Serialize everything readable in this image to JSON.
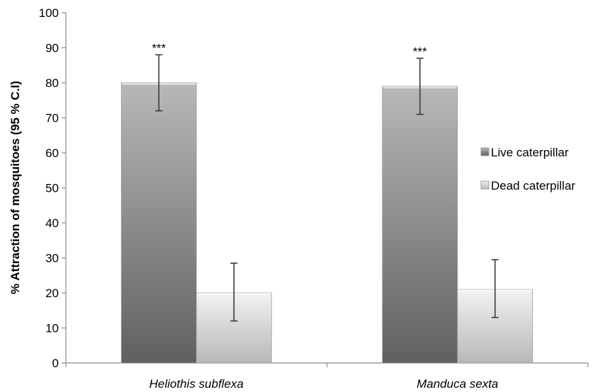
{
  "chart_data": {
    "type": "bar",
    "title": "",
    "xlabel": "",
    "ylabel": "% Attraction of mosquitoes (95 % C.I)",
    "ylim": [
      0,
      100
    ],
    "yticks": [
      "0",
      "10",
      "20",
      "30",
      "40",
      "50",
      "60",
      "70",
      "80",
      "90",
      "100"
    ],
    "categories": [
      "Heliothis subflexa",
      "Manduca sexta"
    ],
    "series": [
      {
        "name": "Live caterpillar",
        "values": [
          80,
          79
        ],
        "ci_low": [
          72,
          71
        ],
        "ci_high": [
          88,
          87
        ],
        "significance": [
          "***",
          "***"
        ],
        "color_top": "#b8b8b8",
        "color_bottom": "#606060"
      },
      {
        "name": "Dead caterpillar",
        "values": [
          20,
          21
        ],
        "ci_low": [
          12,
          13
        ],
        "ci_high": [
          28.5,
          29.5
        ],
        "significance": [
          "",
          ""
        ],
        "color_top": "#f2f2f2",
        "color_bottom": "#b8b8b8"
      }
    ],
    "grid": false,
    "legend_position": "right"
  }
}
